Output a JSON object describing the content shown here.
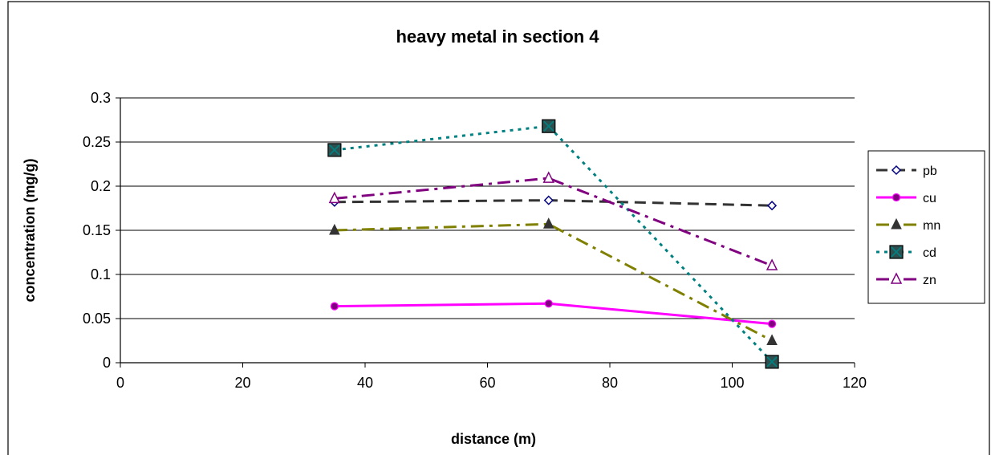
{
  "chart_data": {
    "type": "line",
    "title": "heavy metal in section 4",
    "xlabel": "distance (m)",
    "ylabel": "concentration (mg/g)",
    "xlim": [
      0,
      120
    ],
    "ylim": [
      0,
      0.3
    ],
    "xticks": [
      "0",
      "20",
      "40",
      "60",
      "80",
      "100",
      "120"
    ],
    "yticks": [
      "0",
      "0.05",
      "0.1",
      "0.15",
      "0.2",
      "0.25",
      "0.3"
    ],
    "grid": "horizontal",
    "legend_position": "right",
    "x": [
      35,
      70,
      106.5
    ],
    "series": [
      {
        "name": "pb",
        "values": [
          0.182,
          0.184,
          0.178
        ],
        "color": "#333333",
        "marker": "diamond-open",
        "marker_color": "#000080",
        "dash": "dash"
      },
      {
        "name": "cu",
        "values": [
          0.064,
          0.067,
          0.044
        ],
        "color": "#ff00ff",
        "marker": "circle",
        "marker_color": "#800080",
        "dash": "solid"
      },
      {
        "name": "mn",
        "values": [
          0.15,
          0.157,
          0.025
        ],
        "color": "#808000",
        "marker": "triangle",
        "marker_color": "#333333",
        "dash": "dashdot"
      },
      {
        "name": "cd",
        "values": [
          0.241,
          0.268,
          0.001
        ],
        "color": "#008080",
        "marker": "square-x",
        "marker_color": "#2f4f4f",
        "dash": "dot"
      },
      {
        "name": "zn",
        "values": [
          0.186,
          0.209,
          0.11
        ],
        "color": "#800080",
        "marker": "triangle-open",
        "marker_color": "#800080",
        "dash": "dashdot"
      }
    ]
  }
}
